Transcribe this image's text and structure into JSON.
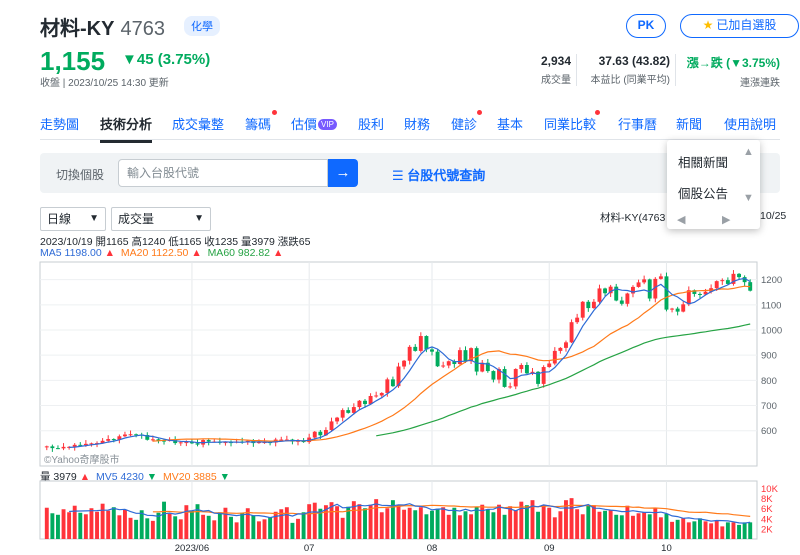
{
  "stock": {
    "name": "材料-KY",
    "code": "4763",
    "tag": "化學",
    "price": "1,155",
    "change": "▼45 (3.75%)",
    "updated": "收盤 | 2023/10/25 14:30 更新"
  },
  "actions": {
    "pk_label": "PK",
    "add_label": "已加自選股"
  },
  "stats": [
    {
      "value": "2,934",
      "label": "成交量"
    },
    {
      "value": "37.63 (43.82)",
      "label": "本益比 (同業平均)"
    },
    {
      "value": "漲→跌 (▼3.75%)",
      "label": "連漲連跌"
    }
  ],
  "nav": {
    "items": [
      "走勢圖",
      "技術分析",
      "成交彙整",
      "籌碼",
      "估價",
      "股利",
      "財務",
      "健診",
      "基本",
      "同業比較",
      "行事曆",
      "新聞",
      "使用說明"
    ],
    "vip_badge": "VIP"
  },
  "search": {
    "label": "切換個股",
    "placeholder": "輸入台股代號",
    "query_link": "台股代號查詢"
  },
  "chart_controls": {
    "period": "日線",
    "indicator": "成交量"
  },
  "news_menu": {
    "items": [
      "相關新聞",
      "個股公告"
    ]
  },
  "chart_info": {
    "ohlc": "2023/10/19 開1165 高1240 低1165 收1235 量3979 漲跌65",
    "ma5": "MA5 1198.00",
    "ma20": "MA20 1122.50",
    "ma60": "MA60 982.82",
    "right_title": "材料-KY(4763",
    "right_date": "10/25",
    "watermark": "©Yahoo奇摩股市",
    "vol": "量 3979",
    "mv5": "MV5 4230",
    "mv20": "MV20 3885"
  },
  "colors": {
    "up": "#ff333a",
    "down": "#00ab5e",
    "ma5": "#2e6bd6",
    "ma20": "#ff7a1a",
    "ma60": "#26a344",
    "accent": "#0f69ff"
  },
  "chart_data": {
    "type": "candlestick",
    "x_tick_labels": [
      "2023/06",
      "07",
      "08",
      "09",
      "10"
    ],
    "x_tick_index": [
      26,
      47,
      69,
      90,
      111
    ],
    "y_ticks": [
      600,
      700,
      800,
      900,
      1000,
      1100,
      1200
    ],
    "y_range": [
      460,
      1270
    ],
    "vol_ticks": [
      "10K",
      "8K",
      "6K",
      "4K",
      "2K"
    ],
    "vol_tick_values": [
      10000,
      8000,
      6000,
      4000,
      2000
    ],
    "vol_range": [
      0,
      11500
    ],
    "close": [
      538,
      531,
      530,
      536,
      536,
      544,
      543,
      548,
      550,
      551,
      560,
      567,
      565,
      578,
      585,
      586,
      585,
      583,
      564,
      566,
      561,
      560,
      563,
      551,
      554,
      555,
      550,
      545,
      563,
      557,
      557,
      552,
      555,
      553,
      557,
      555,
      560,
      551,
      555,
      555,
      553,
      565,
      565,
      565,
      557,
      560,
      555,
      573,
      596,
      582,
      603,
      637,
      652,
      682,
      671,
      694,
      719,
      706,
      738,
      740,
      750,
      804,
      777,
      855,
      878,
      933,
      917,
      976,
      923,
      914,
      856,
      859,
      876,
      865,
      920,
      876,
      928,
      835,
      870,
      837,
      803,
      845,
      774,
      776,
      845,
      861,
      828,
      834,
      786,
      853,
      867,
      917,
      929,
      951,
      1031,
      1049,
      1112,
      1087,
      1112,
      1165,
      1146,
      1172,
      1117,
      1104,
      1145,
      1171,
      1189,
      1201,
      1125,
      1203,
      1213,
      1081,
      1085,
      1073,
      1102,
      1158,
      1143,
      1141,
      1152,
      1166,
      1194,
      1198,
      1183,
      1223,
      1210,
      1190,
      1156
    ],
    "volume": [
      6200,
      5100,
      4800,
      5900,
      5300,
      6600,
      5200,
      4900,
      6100,
      5400,
      7000,
      5600,
      6300,
      4700,
      5800,
      4200,
      3800,
      5700,
      4100,
      3600,
      5200,
      7400,
      5000,
      4500,
      3900,
      6700,
      5600,
      6900,
      4800,
      4600,
      3700,
      5300,
      6200,
      4400,
      3300,
      5200,
      6100,
      4700,
      3500,
      3900,
      4300,
      5400,
      5900,
      6300,
      3200,
      4000,
      5300,
      6900,
      7200,
      6000,
      6700,
      7300,
      6500,
      4200,
      6400,
      7500,
      6900,
      6100,
      6800,
      7900,
      5300,
      6100,
      7700,
      6800,
      5800,
      6200,
      5700,
      6300,
      4900,
      5600,
      6000,
      6300,
      4800,
      6200,
      4700,
      5500,
      4900,
      6300,
      6800,
      5900,
      5300,
      6800,
      4800,
      6500,
      5700,
      7400,
      6700,
      7700,
      5400,
      6700,
      6200,
      4300,
      5500,
      7700,
      8100,
      5900,
      4900,
      6800,
      6700,
      5400,
      5600,
      5700,
      4800,
      4700,
      6600,
      4600,
      5100,
      5300,
      4900,
      6200,
      4300,
      5000,
      3400,
      3800,
      4100,
      3300,
      3500,
      4100,
      3500,
      3100,
      3700,
      2500,
      3300,
      3300,
      2800,
      3300,
      3300
    ],
    "ma5": [
      null,
      null,
      null,
      null,
      534,
      535,
      538,
      541,
      544,
      547,
      550,
      555,
      559,
      564,
      571,
      576,
      580,
      583,
      579,
      577,
      572,
      567,
      562,
      560,
      558,
      557,
      556,
      553,
      553,
      554,
      554,
      555,
      556,
      555,
      555,
      554,
      556,
      555,
      556,
      555,
      554,
      556,
      558,
      560,
      561,
      561,
      560,
      562,
      568,
      573,
      583,
      598,
      614,
      632,
      649,
      667,
      683,
      694,
      705,
      719,
      731,
      747,
      762,
      783,
      809,
      839,
      872,
      904,
      925,
      933,
      924,
      906,
      885,
      874,
      875,
      876,
      880,
      868,
      867,
      865,
      855,
      840,
      826,
      807,
      809,
      820,
      823,
      829,
      826,
      833,
      834,
      851,
      876,
      899,
      938,
      975,
      1015,
      1046,
      1078,
      1102,
      1133,
      1153,
      1163,
      1158,
      1157,
      1151,
      1155,
      1159,
      1152,
      1170,
      1181,
      1162,
      1141,
      1131,
      1115,
      1104,
      1110,
      1124,
      1139,
      1152,
      1161,
      1170,
      1179,
      1193,
      1201,
      1205,
      1192
    ],
    "ma20": [
      null,
      null,
      null,
      null,
      null,
      null,
      null,
      null,
      null,
      null,
      null,
      null,
      null,
      null,
      null,
      null,
      null,
      null,
      null,
      559,
      560,
      562,
      564,
      565,
      566,
      567,
      567,
      567,
      568,
      568,
      568,
      567,
      567,
      566,
      565,
      564,
      563,
      561,
      561,
      560,
      559,
      559,
      559,
      560,
      560,
      560,
      560,
      561,
      563,
      564,
      567,
      571,
      576,
      582,
      588,
      595,
      603,
      610,
      619,
      628,
      638,
      650,
      661,
      676,
      691,
      709,
      727,
      748,
      766,
      784,
      799,
      814,
      829,
      843,
      859,
      873,
      887,
      894,
      905,
      913,
      915,
      917,
      910,
      904,
      903,
      899,
      895,
      888,
      881,
      878,
      879,
      882,
      885,
      889,
      895,
      904,
      913,
      925,
      935,
      952,
      969,
      985,
      997,
      1009,
      1019,
      1035,
      1049,
      1067,
      1083,
      1101,
      1119,
      1130,
      1138,
      1145,
      1148,
      1153,
      1155,
      1156,
      1157,
      1158,
      1161,
      1163,
      1162,
      1165,
      1170,
      1174,
      1172
    ],
    "ma60": [
      null,
      null,
      null,
      null,
      null,
      null,
      null,
      null,
      null,
      null,
      null,
      null,
      null,
      null,
      null,
      null,
      null,
      null,
      null,
      null,
      null,
      null,
      null,
      null,
      null,
      null,
      null,
      null,
      null,
      null,
      null,
      null,
      null,
      null,
      null,
      null,
      null,
      null,
      null,
      null,
      null,
      null,
      null,
      null,
      null,
      null,
      null,
      null,
      null,
      null,
      null,
      null,
      null,
      null,
      null,
      null,
      null,
      null,
      null,
      580,
      584,
      588,
      592,
      597,
      602,
      608,
      615,
      622,
      629,
      636,
      643,
      651,
      660,
      668,
      677,
      685,
      694,
      700,
      708,
      714,
      720,
      727,
      732,
      738,
      744,
      751,
      757,
      764,
      769,
      776,
      783,
      791,
      799,
      808,
      818,
      829,
      840,
      851,
      862,
      874,
      884,
      893,
      902,
      911,
      920,
      930,
      939,
      948,
      955,
      962,
      967,
      971,
      974,
      977,
      980,
      983,
      986,
      990,
      993,
      997,
      1000,
      1003,
      1006,
      1010,
      1014,
      1019,
      1024
    ],
    "mv5": [
      null,
      null,
      null,
      null,
      5460,
      5540,
      5560,
      5580,
      5620,
      5640,
      5720,
      5740,
      6060,
      5800,
      5880,
      5440,
      5100,
      5100,
      4700,
      4660,
      4480,
      5000,
      5140,
      4940,
      5140,
      5500,
      5620,
      5820,
      5540,
      5660,
      5120,
      5060,
      4920,
      4780,
      4640,
      4800,
      4920,
      4620,
      4640,
      4480,
      4240,
      4480,
      4660,
      4860,
      4540,
      4980,
      4940,
      5320,
      5380,
      5300,
      5820,
      6400,
      6880,
      6180,
      6240,
      6400,
      6680,
      6580,
      6700,
      6960,
      6680,
      6640,
      6560,
      6780,
      6740,
      7000,
      6520,
      6460,
      6260,
      5760,
      5920,
      5960,
      5660,
      5700,
      5560,
      5880,
      5560,
      5780,
      5600,
      5880,
      5900,
      6340,
      6100,
      5960,
      5600,
      6100,
      6000,
      6540,
      6380,
      6760,
      6580,
      6380,
      6100,
      6160,
      6100,
      6320,
      6540,
      6840,
      6100,
      6080,
      5880,
      5740,
      5640,
      5440,
      5460,
      5620,
      5440,
      5280,
      5300,
      5220,
      5340,
      5060,
      4580,
      4440,
      4100,
      4180,
      4000,
      3960,
      3760,
      3540,
      3660,
      3640,
      3580,
      3420,
      3200,
      3140,
      3340
    ],
    "mv20": [
      null,
      null,
      null,
      null,
      null,
      null,
      null,
      null,
      null,
      null,
      null,
      null,
      null,
      null,
      null,
      null,
      null,
      null,
      null,
      5395,
      5385,
      5445,
      5455,
      5385,
      5315,
      5340,
      5360,
      5460,
      5395,
      5355,
      5190,
      5175,
      5170,
      5145,
      5095,
      5145,
      5260,
      5180,
      5150,
      5165,
      5120,
      5030,
      5080,
      5100,
      5090,
      5000,
      4985,
      4985,
      5105,
      5175,
      5325,
      5425,
      5440,
      5400,
      5580,
      5695,
      5735,
      5805,
      6010,
      6210,
      6245,
      6265,
      6335,
      6460,
      6585,
      6620,
      6585,
      6525,
      6595,
      6680,
      6650,
      6595,
      6545,
      6545,
      6450,
      6400,
      6350,
      6360,
      6360,
      6310,
      6315,
      6350,
      6205,
      6320,
      6270,
      6330,
      6360,
      6400,
      6430,
      6480,
      6555,
      6420,
      6455,
      6540,
      6710,
      6660,
      6640,
      6620,
      6610,
      6550,
      6500,
      6470,
      6470,
      6430,
      6430,
      6285,
      6320,
      6150,
      6125,
      6150,
      6080,
      6015,
      5830,
      5650,
      5520,
      5340,
      5290,
      5280,
      5320,
      5180,
      5060,
      4990,
      4990,
      4820,
      4710,
      4600,
      4485
    ]
  }
}
